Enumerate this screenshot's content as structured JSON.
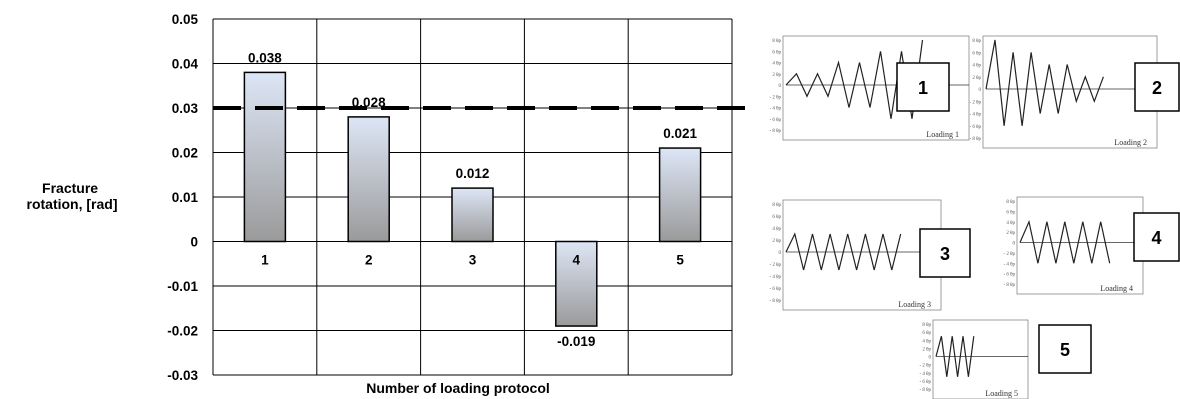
{
  "chart_data": {
    "type": "bar",
    "categories": [
      "1",
      "2",
      "3",
      "4",
      "5"
    ],
    "values": [
      0.038,
      0.028,
      0.012,
      -0.019,
      0.021
    ],
    "data_labels": [
      "0.038",
      "0.028",
      "0.012",
      "-0.019",
      "0.021"
    ],
    "title": "",
    "xlabel": "Number of loading protocol",
    "ylabel": "Fracture rotation, [rad]",
    "ylabel_lines": [
      "Fracture",
      "rotation, [rad]"
    ],
    "ylim": [
      -0.03,
      0.05
    ],
    "yticks": [
      "0.05",
      "0.04",
      "0.03",
      "0.02",
      "0.01",
      "0",
      "-0.01",
      "-0.02",
      "-0.03"
    ],
    "ytick_values": [
      0.05,
      0.04,
      0.03,
      0.02,
      0.01,
      0,
      -0.01,
      -0.02,
      -0.03
    ],
    "reference_line": 0.03,
    "grid": true,
    "bar_gradient": [
      "#dde6f6",
      "#9a9a9a"
    ]
  },
  "insets": [
    {
      "badge": "1",
      "caption": "Loading 1",
      "ticks": [
        "8 θp",
        "6 θp",
        "4 θp",
        "2 θp",
        "0",
        "- 2 θp",
        "- 4 θp",
        "- 6 θp",
        "- 8 θp"
      ],
      "amps": [
        2,
        -2,
        2,
        -2,
        4,
        -4,
        4,
        -4,
        6,
        -6,
        6,
        -6,
        8
      ]
    },
    {
      "badge": "2",
      "caption": "Loading 2",
      "ticks": [
        "8 θp",
        "6 θp",
        "4 θp",
        "2 θp",
        "0",
        "- 2 θp",
        "- 4 θp",
        "- 6 θp",
        "- 8 θp"
      ],
      "amps": [
        8,
        -6,
        6,
        -6,
        6,
        -4,
        4,
        -4,
        4,
        -2,
        2,
        -2,
        2
      ]
    },
    {
      "badge": "3",
      "caption": "Loading 3",
      "ticks": [
        "8 θp",
        "6 θp",
        "4 θp",
        "2 θp",
        "0",
        "- 2 θp",
        "- 4 θp",
        "- 6 θp",
        "- 8 θp"
      ],
      "amps": [
        3,
        -3,
        3,
        -3,
        3,
        -3,
        3,
        -3,
        3,
        -3,
        3,
        -3,
        3
      ]
    },
    {
      "badge": "4",
      "caption": "Loading 4",
      "ticks": [
        "8 θp",
        "6 θp",
        "4 θp",
        "2 θp",
        "0",
        "- 2 θp",
        "- 4 θp",
        "- 6 θp",
        "- 8 θp"
      ],
      "amps": [
        4,
        -4,
        4,
        -4,
        4,
        -4,
        4,
        -4,
        4,
        -4
      ]
    },
    {
      "badge": "5",
      "caption": "Loading 5",
      "ticks": [
        "8 θp",
        "6 θp",
        "4 θp",
        "2 θp",
        "0",
        "- 2 θp",
        "- 4 θp",
        "- 6 θp",
        "- 8 θp"
      ],
      "amps": [
        5,
        -5,
        5,
        -5,
        5,
        -5,
        5
      ]
    }
  ]
}
